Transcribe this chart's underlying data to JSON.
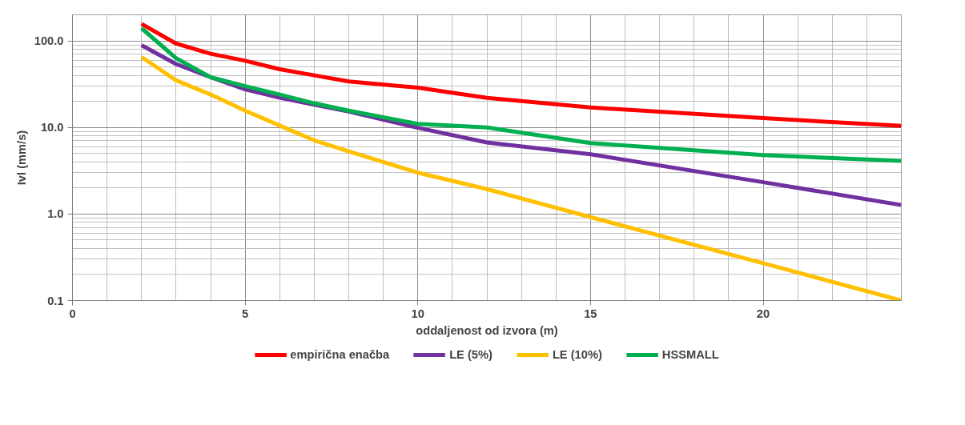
{
  "chart_data": {
    "type": "line",
    "xlabel": "oddaljenost od izvora (m)",
    "ylabel": "Ivl (mm/s)",
    "x": [
      2,
      3,
      4,
      5,
      6,
      7,
      8,
      10,
      12,
      15,
      20,
      24
    ],
    "series": [
      {
        "name": "empirična enačba",
        "color": "#ff0000",
        "values": [
          157,
          93,
          71,
          59,
          47,
          40,
          34,
          28.8,
          22,
          17,
          12.8,
          10.4
        ]
      },
      {
        "name": "LE (5%)",
        "color": "#7030a0",
        "values": [
          89,
          54,
          38,
          27.5,
          22,
          18.3,
          15.3,
          9.9,
          6.7,
          4.9,
          2.33,
          1.27
        ]
      },
      {
        "name": "LE (10%)",
        "color": "#ffc000",
        "values": [
          65,
          35,
          24,
          15.6,
          10.5,
          7.1,
          5.3,
          3.0,
          1.94,
          0.92,
          0.27,
          0.1
        ]
      },
      {
        "name": "HSSMALL",
        "color": "#00b050",
        "values": [
          140,
          63,
          38,
          30,
          24,
          19,
          15.6,
          11,
          10,
          6.6,
          4.8,
          4.1
        ]
      }
    ],
    "xlim": [
      0,
      24
    ],
    "xticks": [
      0,
      5,
      10,
      15,
      20
    ],
    "ylim": [
      0.1,
      200
    ],
    "yticks": [
      {
        "value": 0.1,
        "label": "0.1"
      },
      {
        "value": 1,
        "label": "1.0"
      },
      {
        "value": 10,
        "label": "10.0"
      },
      {
        "value": 100,
        "label": "100.0"
      }
    ],
    "log": "y",
    "grid": true,
    "legend": "bottom",
    "marker": "none",
    "line_style": "solid"
  }
}
